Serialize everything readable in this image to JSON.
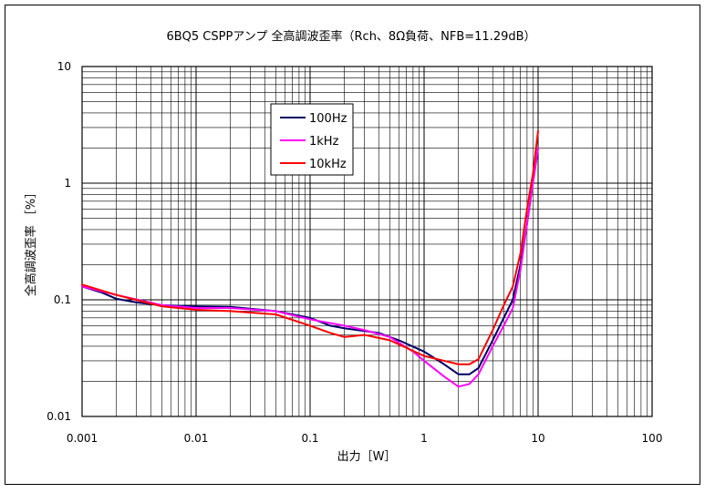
{
  "chart_data": {
    "type": "line",
    "title": "6BQ5 CSPPアンプ 全高調波歪率（Rch、8Ω負荷、NFB=11.29dB）",
    "xlabel": "出力［W］",
    "ylabel": "全高調波歪率 ［%］",
    "x_scale": "log",
    "y_scale": "log",
    "xlim": [
      0.001,
      100
    ],
    "ylim": [
      0.01,
      10
    ],
    "x_ticks": [
      {
        "value": 0.001,
        "label": "0.001"
      },
      {
        "value": 0.01,
        "label": "0.01"
      },
      {
        "value": 0.1,
        "label": "0.1"
      },
      {
        "value": 1,
        "label": "1"
      },
      {
        "value": 10,
        "label": "10"
      },
      {
        "value": 100,
        "label": "100"
      }
    ],
    "y_ticks": [
      {
        "value": 0.01,
        "label": "0.01"
      },
      {
        "value": 0.1,
        "label": "0.1"
      },
      {
        "value": 1,
        "label": "1"
      },
      {
        "value": 10,
        "label": "10"
      }
    ],
    "grid": true,
    "legend_position": "top-left inside",
    "series": [
      {
        "name": "100Hz",
        "color": "#000066",
        "points": [
          [
            0.001,
            0.13
          ],
          [
            0.0015,
            0.115
          ],
          [
            0.002,
            0.102
          ],
          [
            0.003,
            0.095
          ],
          [
            0.005,
            0.09
          ],
          [
            0.01,
            0.088
          ],
          [
            0.02,
            0.087
          ],
          [
            0.05,
            0.08
          ],
          [
            0.1,
            0.07
          ],
          [
            0.15,
            0.06
          ],
          [
            0.2,
            0.057
          ],
          [
            0.3,
            0.054
          ],
          [
            0.4,
            0.052
          ],
          [
            0.6,
            0.045
          ],
          [
            1.0,
            0.036
          ],
          [
            1.5,
            0.028
          ],
          [
            2.0,
            0.023
          ],
          [
            2.5,
            0.023
          ],
          [
            3.0,
            0.026
          ],
          [
            4.0,
            0.045
          ],
          [
            5.0,
            0.07
          ],
          [
            6.0,
            0.1
          ],
          [
            7.0,
            0.2
          ],
          [
            8.0,
            0.45
          ],
          [
            9.0,
            1.0
          ],
          [
            10.0,
            2.0
          ]
        ]
      },
      {
        "name": "1kHz",
        "color": "#ff00ff",
        "points": [
          [
            0.001,
            0.13
          ],
          [
            0.002,
            0.11
          ],
          [
            0.005,
            0.09
          ],
          [
            0.01,
            0.085
          ],
          [
            0.02,
            0.085
          ],
          [
            0.05,
            0.08
          ],
          [
            0.1,
            0.068
          ],
          [
            0.2,
            0.06
          ],
          [
            0.3,
            0.055
          ],
          [
            0.5,
            0.048
          ],
          [
            0.8,
            0.036
          ],
          [
            1.0,
            0.03
          ],
          [
            1.5,
            0.022
          ],
          [
            2.0,
            0.018
          ],
          [
            2.5,
            0.019
          ],
          [
            3.0,
            0.023
          ],
          [
            4.0,
            0.04
          ],
          [
            5.0,
            0.06
          ],
          [
            6.0,
            0.085
          ],
          [
            7.0,
            0.18
          ],
          [
            8.0,
            0.45
          ],
          [
            9.0,
            1.0
          ],
          [
            10.0,
            2.0
          ]
        ]
      },
      {
        "name": "10kHz",
        "color": "#ff0000",
        "points": [
          [
            0.001,
            0.135
          ],
          [
            0.002,
            0.11
          ],
          [
            0.005,
            0.088
          ],
          [
            0.01,
            0.082
          ],
          [
            0.02,
            0.08
          ],
          [
            0.05,
            0.075
          ],
          [
            0.1,
            0.06
          ],
          [
            0.15,
            0.052
          ],
          [
            0.2,
            0.048
          ],
          [
            0.3,
            0.05
          ],
          [
            0.5,
            0.045
          ],
          [
            1.0,
            0.033
          ],
          [
            1.5,
            0.03
          ],
          [
            2.0,
            0.028
          ],
          [
            2.5,
            0.028
          ],
          [
            3.0,
            0.031
          ],
          [
            4.0,
            0.055
          ],
          [
            5.0,
            0.09
          ],
          [
            6.0,
            0.13
          ],
          [
            7.0,
            0.25
          ],
          [
            8.0,
            0.6
          ],
          [
            9.0,
            1.2
          ],
          [
            10.0,
            2.8
          ]
        ]
      }
    ]
  }
}
